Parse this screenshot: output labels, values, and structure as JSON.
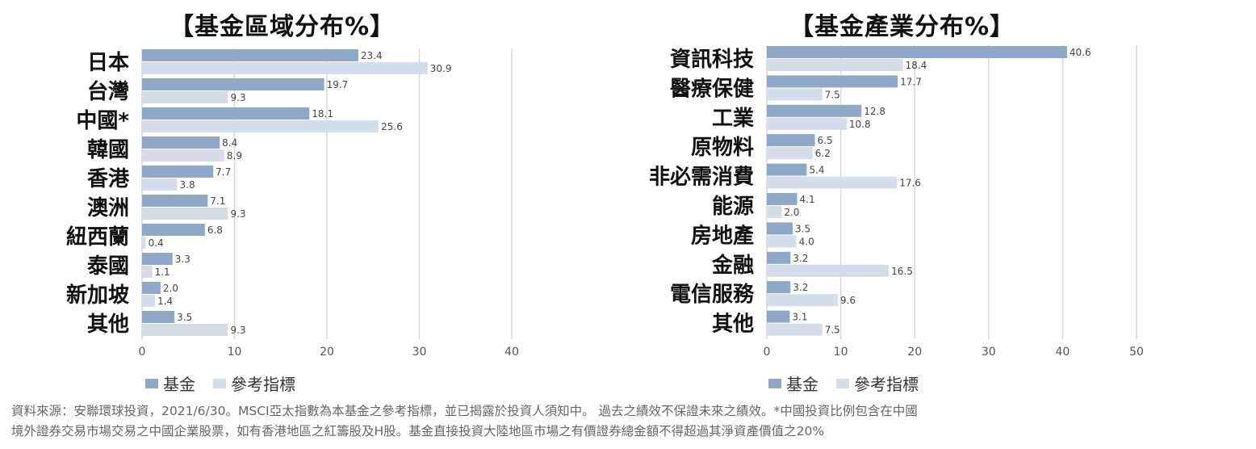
{
  "colors": {
    "fund": "#8fa8c7",
    "benchmark": "#d4dde9",
    "grid": "#d9d9d9"
  },
  "legend": {
    "fund": "基金",
    "benchmark": "參考指標"
  },
  "footnote": {
    "line1": "資料來源：安聯環球投資，2021/6/30。MSCI亞太指數為本基金之參考指標，並已揭露於投資人須知中。 過去之績效不保證未來之績效。*中國投資比例包含在中國",
    "line2": "境外證券交易市場交易之中國企業股票，如有香港地區之紅籌股及H股。基金直接投資大陸地區市場之有價證券總金額不得超過其淨資產價值之20%"
  },
  "chart_data": [
    {
      "type": "bar",
      "orientation": "horizontal",
      "title": "【基金區域分布%】",
      "categories": [
        "日本",
        "台灣",
        "中國*",
        "韓國",
        "香港",
        "澳洲",
        "紐西蘭",
        "泰國",
        "新加坡",
        "其他"
      ],
      "series": [
        {
          "name": "基金",
          "values": [
            23.4,
            19.7,
            18.1,
            8.4,
            7.7,
            7.1,
            6.8,
            3.3,
            2.0,
            3.5
          ],
          "labels": [
            "23.4",
            "19.7",
            "18.1",
            "8.4",
            "7.7",
            "7.1",
            "6.8",
            "3.3",
            "2.0",
            "3.5"
          ]
        },
        {
          "name": "參考指標",
          "values": [
            30.9,
            9.3,
            25.6,
            8.9,
            3.8,
            9.3,
            0.4,
            1.1,
            1.4,
            9.3
          ],
          "labels": [
            "30.9",
            "9.3",
            "25.6",
            "8.9",
            "3.8",
            "9.3",
            "0.4",
            "1.1",
            "1.4",
            "9.3"
          ]
        }
      ],
      "xlim": [
        0,
        40
      ],
      "xticks": [
        "0",
        "10",
        "20",
        "30",
        "40"
      ],
      "grid": true,
      "legend_position": "bottom-left"
    },
    {
      "type": "bar",
      "orientation": "horizontal",
      "title": "【基金產業分布%】",
      "categories": [
        "資訊科技",
        "醫療保健",
        "工業",
        "原物料",
        "非必需消費",
        "能源",
        "房地產",
        "金融",
        "電信服務",
        "其他"
      ],
      "series": [
        {
          "name": "基金",
          "values": [
            40.6,
            17.7,
            12.8,
            6.5,
            5.4,
            4.1,
            3.5,
            3.2,
            3.2,
            3.1
          ],
          "labels": [
            "40.6",
            "17.7",
            "12.8",
            "6.5",
            "5.4",
            "4.1",
            "3.5",
            "3.2",
            "3.2",
            "3.1"
          ]
        },
        {
          "name": "參考指標",
          "values": [
            18.4,
            7.5,
            10.8,
            6.2,
            17.6,
            2.0,
            4.0,
            16.5,
            9.6,
            7.5
          ],
          "labels": [
            "18.4",
            "7.5",
            "10.8",
            "6.2",
            "17.6",
            "2.0",
            "4.0",
            "16.5",
            "9.6",
            "7.5"
          ]
        }
      ],
      "xlim": [
        0,
        50
      ],
      "xticks": [
        "0",
        "10",
        "20",
        "30",
        "40",
        "50"
      ],
      "grid": true,
      "legend_position": "bottom-left"
    }
  ]
}
